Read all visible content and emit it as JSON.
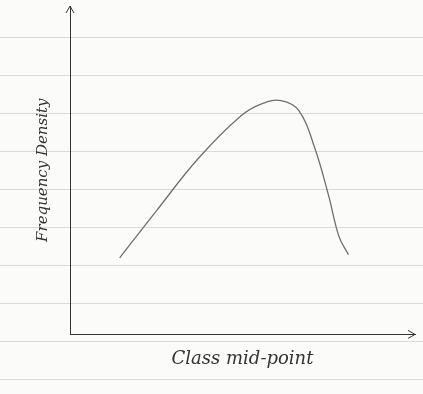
{
  "chart_data": {
    "type": "line",
    "x_label": "Class mid-point",
    "y_label": "Frequency Density",
    "x": [
      1.44,
      2.51,
      3.73,
      4.95,
      5.57,
      6.12,
      6.64,
      7.09,
      7.49,
      7.8,
      8.07
    ],
    "values": [
      2.33,
      3.77,
      5.37,
      6.65,
      7.03,
      7.12,
      6.81,
      5.69,
      4.25,
      2.97,
      2.43
    ],
    "color": "#6f6f6f",
    "xlim": [
      0,
      10
    ],
    "ylim": [
      0,
      10
    ],
    "grid": false,
    "tick_labels": false
  }
}
